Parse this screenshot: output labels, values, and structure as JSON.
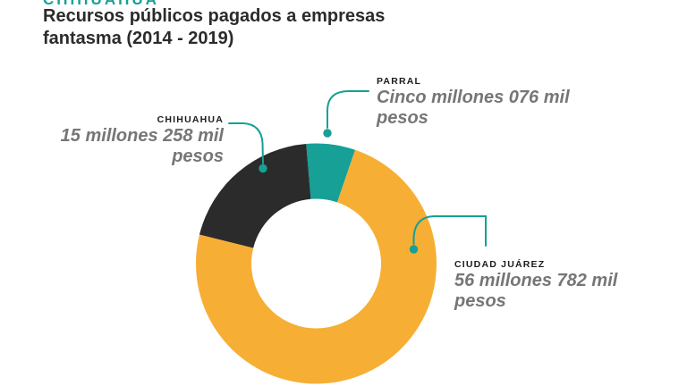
{
  "header": {
    "kicker": "CHIHUAHUA",
    "title_line1": "Recursos públicos pagados a empresas",
    "title_line2": "fantasma (2014 - 2019)"
  },
  "colors": {
    "teal": "#16A096",
    "orange": "#F7AE35",
    "dark": "#2B2B2B",
    "value_text_gray": "#767676",
    "label_black": "#1C1C1C",
    "background": "#FFFFFF"
  },
  "chart_data": {
    "type": "pie",
    "subtype": "donut",
    "title": "Recursos públicos pagados a empresas fantasma (2014 - 2019)",
    "unit": "millones de pesos",
    "order": "clockwise-from-top",
    "start_angle_deg": -4.8,
    "legend_position": "callout-labels",
    "segments": [
      {
        "label": "PARRAL",
        "value": 5.076,
        "value_text": "Cinco millones 076 mil pesos",
        "color": "#16A096"
      },
      {
        "label": "CIUDAD JUÁREZ",
        "value": 56.782,
        "value_text": "56 millones 782 mil pesos",
        "color": "#F7AE35"
      },
      {
        "label": "CHIHUAHUA",
        "value": 15.258,
        "value_text": "15 millones 258 mil pesos",
        "color": "#2B2B2B"
      }
    ]
  },
  "callouts": {
    "parral": {
      "label": "PARRAL",
      "value_line1": "Cinco millones 076 mil",
      "value_line2": "pesos"
    },
    "chihuahua": {
      "label": "CHIHUAHUA",
      "value_line1": "15 millones 258 mil",
      "value_line2": "pesos"
    },
    "juarez": {
      "label": "CIUDAD JUÁREZ",
      "value_line1": "56 millones 782 mil",
      "value_line2": "pesos"
    }
  }
}
